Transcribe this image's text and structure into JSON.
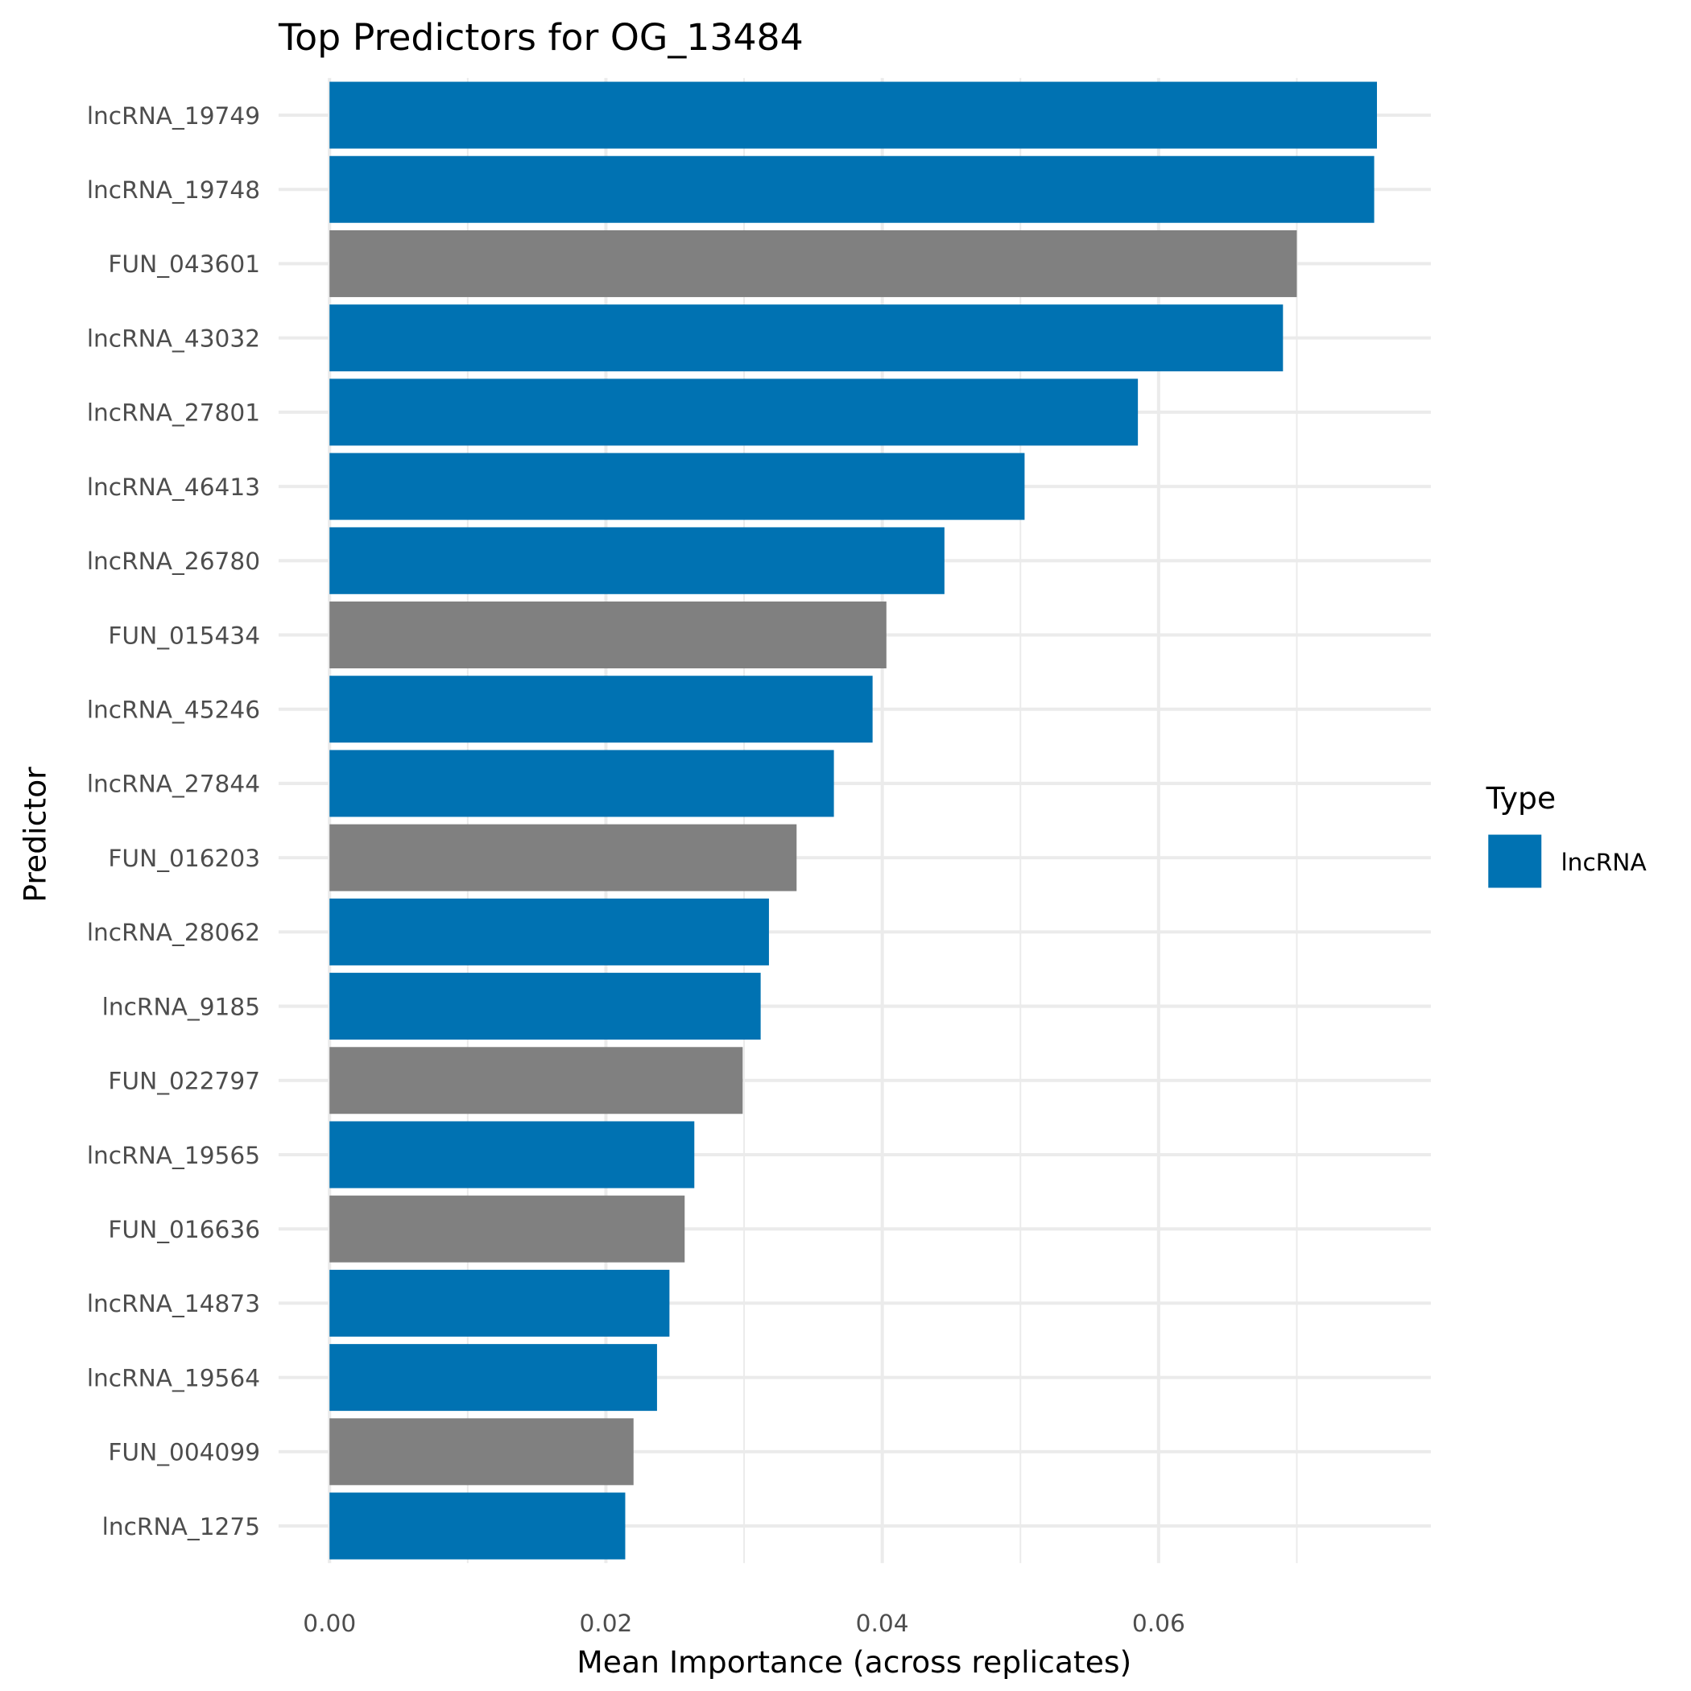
{
  "chart_data": {
    "type": "bar",
    "orientation": "horizontal",
    "title": "Top Predictors for OG_13484",
    "xlabel": "Mean Importance (across replicates)",
    "ylabel": "Predictor",
    "xlim": [
      0,
      0.0797
    ],
    "xticks": [
      0.0,
      0.02,
      0.04,
      0.06
    ],
    "xtick_labels": [
      "0.00",
      "0.02",
      "0.04",
      "0.06"
    ],
    "grid": true,
    "legend": {
      "title": "Type",
      "placement": "right",
      "entries": [
        {
          "label": "lncRNA",
          "color": "#0072B2"
        }
      ]
    },
    "colors": {
      "lncRNA": "#0072B2",
      "other": "#808080"
    },
    "categories": [
      "lncRNA_19749",
      "lncRNA_19748",
      "FUN_043601",
      "lncRNA_43032",
      "lncRNA_27801",
      "lncRNA_46413",
      "lncRNA_26780",
      "FUN_015434",
      "lncRNA_45246",
      "lncRNA_27844",
      "FUN_016203",
      "lncRNA_28062",
      "lncRNA_9185",
      "FUN_022797",
      "lncRNA_19565",
      "FUN_016636",
      "lncRNA_14873",
      "lncRNA_19564",
      "FUN_004099",
      "lncRNA_1275"
    ],
    "types": [
      "lncRNA",
      "lncRNA",
      "other",
      "lncRNA",
      "lncRNA",
      "lncRNA",
      "lncRNA",
      "other",
      "lncRNA",
      "lncRNA",
      "other",
      "lncRNA",
      "lncRNA",
      "other",
      "lncRNA",
      "other",
      "lncRNA",
      "lncRNA",
      "other",
      "lncRNA"
    ],
    "values": [
      0.0758,
      0.0756,
      0.07,
      0.069,
      0.0585,
      0.0503,
      0.0445,
      0.0403,
      0.0393,
      0.0365,
      0.0338,
      0.0318,
      0.0312,
      0.0299,
      0.0264,
      0.0257,
      0.0246,
      0.0237,
      0.022,
      0.0214
    ]
  }
}
